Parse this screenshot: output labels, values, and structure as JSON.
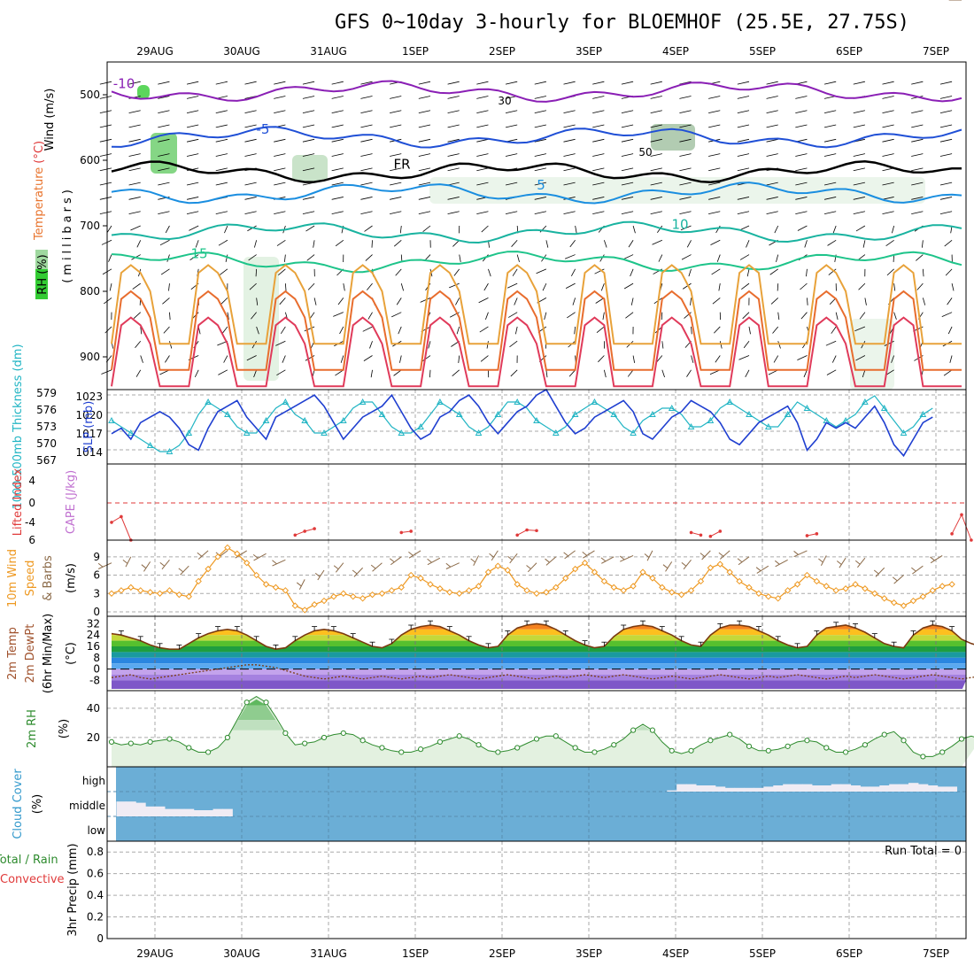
{
  "title": "GFS 0~10day 3-hourly for BLOEMHOF (25.5E, 27.75S)",
  "dates": [
    "29AUG",
    "30AUG",
    "31AUG",
    "1SEP",
    "2SEP",
    "3SEP",
    "4SEP",
    "5SEP",
    "6SEP",
    "7SEP"
  ],
  "colors": {
    "frame": "#000000",
    "grid": "#aaaaaa",
    "cloud_bg": "#6baed6",
    "rh_green": "#33cc33",
    "slp": "#1f3fd0",
    "thickness": "#22b5c4",
    "lifted": "#e03a3a",
    "wind": "#ee9922",
    "barb": "#8b6a48",
    "rh2m": "#2e8b2e",
    "temp_line": "#7a3a10"
  },
  "chart_data": [
    {
      "panel": "upper-air",
      "type": "heatmap",
      "ylabel_parts": [
        "Wind",
        "(m/s)",
        "Temperature",
        "(°C)"
      ],
      "ylabel_pressure": "(millibars)",
      "rh_label": "RH (%)",
      "y_ticks": [
        "500",
        "600",
        "700",
        "800",
        "900"
      ],
      "ylim": [
        950,
        450
      ],
      "isotherms": [
        {
          "label": "-10",
          "level_mb": 495,
          "color": "#8a1fb5"
        },
        {
          "label": "-5",
          "level_mb": 565,
          "color": "#1f4fd6"
        },
        {
          "label": "FR",
          "level_mb": 618,
          "color": "#000000"
        },
        {
          "label": "5",
          "level_mb": 650,
          "color": "#1a8ee0"
        },
        {
          "label": "10",
          "level_mb": 710,
          "color": "#19b3a0"
        },
        {
          "label": "15",
          "level_mb": 755,
          "color": "#1ec48a"
        }
      ],
      "rh_contour_labels": [
        "30",
        "50"
      ]
    },
    {
      "panel": "slp-thickness",
      "type": "line",
      "ylabel_left": "1000-500mb Thickness (dm)",
      "ylabel_right": "SLP (mb)",
      "left_ticks": [
        "579",
        "576",
        "573",
        "570",
        "567"
      ],
      "right_ticks": [
        "1023",
        "1020",
        "1017",
        "1014"
      ],
      "slp_lim": [
        1011.5,
        1025
      ],
      "thk_lim": [
        567,
        579
      ],
      "slp": [
        1017,
        1018,
        1016,
        1019,
        1020,
        1021,
        1020,
        1018,
        1015,
        1014,
        1018,
        1021,
        1022,
        1023,
        1020,
        1018,
        1016,
        1020,
        1021,
        1022,
        1023,
        1024,
        1022,
        1019,
        1016,
        1018,
        1020,
        1021,
        1022,
        1024,
        1021,
        1018,
        1016,
        1017,
        1020,
        1021,
        1023,
        1024,
        1022,
        1019,
        1017,
        1019,
        1021,
        1022,
        1024,
        1025,
        1022,
        1019,
        1017,
        1018,
        1020,
        1021,
        1022,
        1023,
        1021,
        1017,
        1016,
        1018,
        1020,
        1021,
        1023,
        1022,
        1021,
        1019,
        1016,
        1015,
        1017,
        1019,
        1020,
        1021,
        1022,
        1019,
        1014,
        1016,
        1019,
        1018,
        1019,
        1018,
        1020,
        1022,
        1019,
        1015,
        1013,
        1016,
        1019,
        1020
      ],
      "thickness": [
        574,
        573,
        572,
        571,
        570,
        569,
        569,
        570,
        572,
        575,
        577,
        576,
        575,
        573,
        572,
        572,
        574,
        576,
        577,
        575,
        574,
        572,
        572,
        573,
        574,
        576,
        577,
        577,
        575,
        573,
        572,
        572,
        573,
        575,
        577,
        576,
        575,
        573,
        572,
        573,
        575,
        577,
        577,
        576,
        574,
        573,
        572,
        573,
        575,
        576,
        577,
        576,
        575,
        573,
        572,
        574,
        575,
        576,
        576,
        575,
        573,
        573,
        574,
        576,
        577,
        576,
        575,
        574,
        573,
        573,
        575,
        577,
        576,
        575,
        574,
        573,
        574,
        575,
        577,
        578,
        576,
        574,
        572,
        573,
        575,
        576
      ]
    },
    {
      "panel": "lifted-cape",
      "type": "line",
      "ylabel_left": "Lifted Index",
      "ylabel_right": "CAPE (J/kg)",
      "left_ticks": [
        "4",
        "0",
        "-4",
        "6"
      ],
      "ylim": [
        6,
        -6
      ],
      "segments": [
        {
          "x": [
            0,
            1,
            2
          ],
          "y": [
            3.2,
            2.3,
            6
          ]
        },
        {
          "x": [
            19,
            20,
            21
          ],
          "y": [
            5.2,
            4.6,
            4.2
          ]
        },
        {
          "x": [
            30,
            31
          ],
          "y": [
            4.8,
            4.6
          ]
        },
        {
          "x": [
            42,
            43,
            44
          ],
          "y": [
            5.2,
            4.4,
            4.5
          ]
        },
        {
          "x": [
            60,
            61
          ],
          "y": [
            4.8,
            5.2
          ]
        },
        {
          "x": [
            62,
            63
          ],
          "y": [
            5.4,
            4.6
          ]
        },
        {
          "x": [
            72,
            73
          ],
          "y": [
            5.3,
            5.0
          ]
        },
        {
          "x": [
            87,
            88,
            89
          ],
          "y": [
            5.0,
            2.0,
            6.0
          ]
        }
      ]
    },
    {
      "panel": "10m-wind",
      "type": "line",
      "ylabel": [
        "10m Wind",
        "Speed",
        "& Barbs",
        "(m/s)"
      ],
      "y_ticks": [
        "9",
        "6",
        "3",
        "0"
      ],
      "ylim": [
        0,
        11
      ],
      "wind_speed": [
        3,
        3.5,
        4,
        3.5,
        3.2,
        3,
        3.5,
        2.8,
        2.5,
        5,
        7,
        9,
        10.5,
        9.5,
        8,
        6,
        4.5,
        4,
        3.5,
        1,
        0.3,
        1.2,
        1.8,
        2.5,
        3,
        2.5,
        2.2,
        2.8,
        3,
        3.5,
        4,
        6,
        5.5,
        4.5,
        3.8,
        3.2,
        3,
        3.5,
        4.2,
        6.5,
        7.5,
        6.8,
        4.5,
        3.5,
        3,
        3.2,
        4,
        5.5,
        7,
        8,
        6.5,
        5,
        4,
        3.5,
        4.2,
        6.5,
        5.5,
        4,
        3.2,
        2.8,
        3.5,
        5,
        7.2,
        7.8,
        6.5,
        5,
        4,
        3,
        2.5,
        2.2,
        3.5,
        4.5,
        6,
        5,
        4.2,
        3.5,
        3.8,
        4.5,
        3.8,
        3,
        2.2,
        1.5,
        1,
        1.8,
        2.5,
        3.5,
        4.2,
        4.5
      ]
    },
    {
      "panel": "2m-temp",
      "type": "area",
      "ylabel": [
        "2m Temp",
        "2m DewPt",
        "(6hr Min/Max)",
        "(°C)"
      ],
      "y_ticks": [
        "32",
        "24",
        "16",
        "8",
        "0",
        "-8"
      ],
      "ylim": [
        -14,
        36
      ],
      "temp": [
        25,
        24,
        22,
        20,
        17,
        15,
        14,
        14,
        18,
        22,
        25,
        27,
        28,
        27,
        24,
        20,
        16,
        14,
        15,
        20,
        24,
        27,
        28,
        27,
        25,
        22,
        19,
        16,
        15,
        18,
        24,
        28,
        30,
        31,
        30,
        27,
        24,
        20,
        17,
        15,
        16,
        24,
        29,
        31,
        32,
        31,
        28,
        24,
        20,
        17,
        15,
        16,
        23,
        28,
        30,
        31,
        30,
        27,
        24,
        20,
        17,
        16,
        24,
        29,
        31,
        31,
        30,
        27,
        24,
        20,
        17,
        15,
        16,
        24,
        29,
        30,
        31,
        29,
        26,
        22,
        18,
        16,
        15,
        24,
        29,
        31,
        30,
        27,
        21,
        18,
        16
      ],
      "dewpoint": [
        -6,
        -5,
        -4,
        -6,
        -7,
        -6,
        -5,
        -4,
        -3,
        -2,
        -1,
        0,
        1,
        2,
        3,
        3,
        2,
        1,
        -1,
        -3,
        -5,
        -6,
        -7,
        -6,
        -5,
        -6,
        -7,
        -6,
        -5,
        -6,
        -7,
        -6,
        -5,
        -6,
        -5,
        -4,
        -5,
        -6,
        -7,
        -6,
        -5,
        -4,
        -5,
        -6,
        -7,
        -6,
        -5,
        -6,
        -5,
        -4,
        -5,
        -6,
        -5,
        -4,
        -5,
        -6,
        -7,
        -6,
        -5,
        -6,
        -7,
        -6,
        -5,
        -4,
        -5,
        -6,
        -7,
        -6,
        -5,
        -6,
        -5,
        -4,
        -5,
        -6,
        -7,
        -6,
        -5,
        -6,
        -5,
        -4,
        -5,
        -6,
        -7,
        -6,
        -5,
        -4,
        -5,
        -6,
        -7,
        -6,
        -5
      ]
    },
    {
      "panel": "2m-rh",
      "type": "area",
      "ylabel": [
        "2m RH",
        "(%)"
      ],
      "y_ticks": [
        "40",
        "20"
      ],
      "ylim": [
        0,
        52
      ],
      "rh": [
        17,
        15,
        16,
        15,
        17,
        18,
        19,
        17,
        13,
        10,
        10,
        13,
        20,
        32,
        44,
        48,
        44,
        34,
        23,
        15,
        16,
        17,
        20,
        22,
        23,
        22,
        18,
        15,
        13,
        11,
        10,
        10,
        12,
        14,
        17,
        19,
        21,
        19,
        15,
        11,
        10,
        11,
        13,
        16,
        19,
        21,
        21,
        17,
        13,
        10,
        10,
        12,
        15,
        19,
        25,
        29,
        25,
        17,
        11,
        9,
        11,
        15,
        18,
        20,
        22,
        19,
        14,
        11,
        11,
        12,
        14,
        17,
        18,
        17,
        13,
        10,
        10,
        12,
        15,
        19,
        22,
        24,
        18,
        10,
        7,
        7,
        10,
        14,
        19,
        21,
        19
      ],
      "band_rh": [
        17,
        15,
        16,
        15,
        17,
        18,
        19,
        17,
        13,
        10,
        10,
        13,
        20,
        31,
        42,
        46,
        42,
        32,
        22,
        15,
        16,
        17,
        19,
        21,
        22,
        21,
        18,
        15,
        13,
        11,
        10,
        10,
        12,
        14,
        17,
        19,
        20,
        19,
        15,
        11,
        10,
        11,
        13,
        16,
        19,
        20,
        20,
        17,
        13,
        10,
        10,
        12,
        15,
        19,
        24,
        28,
        24,
        17,
        11,
        9,
        11,
        15,
        18,
        20,
        21,
        19,
        14,
        11,
        11,
        12,
        14,
        17,
        18,
        17,
        13,
        10,
        10,
        12,
        15,
        19,
        21,
        23,
        18,
        10,
        7,
        7,
        10,
        14,
        19,
        20,
        19
      ]
    },
    {
      "panel": "cloud-cover",
      "type": "bar",
      "ylabel": [
        "Cloud Cover",
        "(%)"
      ],
      "levels": [
        "high",
        "middle",
        "low"
      ],
      "middle_x": [
        1,
        2,
        3,
        4,
        5,
        6,
        7,
        8,
        9,
        10,
        11,
        12
      ],
      "middle_pct": [
        60,
        60,
        55,
        40,
        40,
        30,
        30,
        30,
        25,
        25,
        30,
        30
      ],
      "high_x": [
        58,
        59,
        60,
        61,
        62,
        63,
        64,
        65,
        66,
        67,
        68,
        69,
        70,
        71,
        72,
        73,
        74,
        75,
        76,
        77,
        78,
        79,
        80,
        81,
        82,
        83,
        84,
        85,
        86,
        87
      ],
      "high_pct": [
        5,
        30,
        30,
        25,
        25,
        20,
        15,
        15,
        15,
        15,
        20,
        25,
        30,
        30,
        30,
        25,
        25,
        30,
        30,
        25,
        20,
        20,
        25,
        30,
        30,
        35,
        30,
        25,
        20,
        20
      ]
    },
    {
      "panel": "precip",
      "type": "bar",
      "ylabel": [
        "3hr Precip (mm)"
      ],
      "legend_total": "Total / Rain",
      "legend_convective": "Convective",
      "run_total": "Run Total = 0",
      "y_ticks": [
        "0.8",
        "0.6",
        "0.4",
        "0.2",
        "0"
      ],
      "ylim": [
        0,
        0.9
      ],
      "values": []
    }
  ]
}
